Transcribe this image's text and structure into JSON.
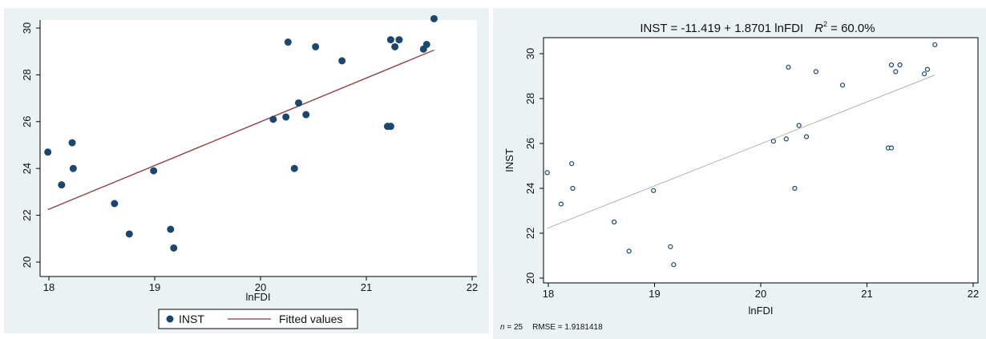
{
  "chart_data": [
    {
      "type": "scatter",
      "title": "",
      "xlabel": "lnFDI",
      "ylabel": "",
      "xlim": [
        18,
        22
      ],
      "ylim": [
        20,
        30.5
      ],
      "xticks": [
        "18",
        "19",
        "20",
        "21",
        "22"
      ],
      "yticks": [
        "20",
        "22",
        "24",
        "26",
        "28",
        "30"
      ],
      "grid": false,
      "legend_position": "bottom",
      "legend": [
        "INST",
        "Fitted values"
      ],
      "colors": {
        "points": "#1a476f",
        "fit": "#90353b",
        "plot_bg": "#eaf2f3",
        "frame_bg": "#ffffff"
      },
      "series": [
        {
          "name": "INST",
          "points": [
            [
              17.99,
              24.7
            ],
            [
              18.12,
              23.3
            ],
            [
              18.22,
              25.1
            ],
            [
              18.23,
              24.0
            ],
            [
              18.62,
              22.5
            ],
            [
              18.76,
              21.2
            ],
            [
              18.99,
              23.9
            ],
            [
              19.15,
              21.4
            ],
            [
              19.18,
              20.6
            ],
            [
              20.12,
              26.1
            ],
            [
              20.24,
              26.2
            ],
            [
              20.26,
              29.4
            ],
            [
              20.32,
              24.0
            ],
            [
              20.36,
              26.8
            ],
            [
              20.43,
              26.3
            ],
            [
              20.52,
              29.2
            ],
            [
              20.77,
              28.6
            ],
            [
              21.2,
              25.8
            ],
            [
              21.23,
              25.8
            ],
            [
              21.23,
              29.5
            ],
            [
              21.27,
              29.2
            ],
            [
              21.31,
              29.5
            ],
            [
              21.54,
              29.1
            ],
            [
              21.57,
              29.3
            ],
            [
              21.64,
              30.4
            ]
          ]
        },
        {
          "name": "Fitted values",
          "type": "line",
          "points": [
            [
              17.99,
              22.24
            ],
            [
              21.64,
              29.06
            ]
          ]
        }
      ]
    },
    {
      "type": "scatter",
      "title": "INST = -11.419 + 1.8701 lnFDI",
      "title_r2_label": "R",
      "title_r2_sup": "2",
      "title_r2_value": " = 60.0%",
      "xlabel": "lnFDI",
      "ylabel": "INST",
      "xlim": [
        18,
        22
      ],
      "ylim": [
        19.7,
        30.8
      ],
      "xticks": [
        "18",
        "19",
        "20",
        "21",
        "22"
      ],
      "yticks": [
        "20",
        "22",
        "24",
        "26",
        "28",
        "30"
      ],
      "grid": false,
      "footnote_n_label": "n",
      "footnote_n_value": " = 25",
      "footnote_rmse": "RMSE = 1.9181418",
      "colors": {
        "points": "#1a476f",
        "fit": "#b0b0b0",
        "plot_bg": "#ffffff",
        "frame_bg": "#eaf2f3"
      },
      "series": [
        {
          "name": "",
          "points": [
            [
              17.99,
              24.7
            ],
            [
              18.12,
              23.3
            ],
            [
              18.22,
              25.1
            ],
            [
              18.23,
              24.0
            ],
            [
              18.62,
              22.5
            ],
            [
              18.76,
              21.2
            ],
            [
              18.99,
              23.9
            ],
            [
              19.15,
              21.4
            ],
            [
              19.18,
              20.6
            ],
            [
              20.12,
              26.1
            ],
            [
              20.24,
              26.2
            ],
            [
              20.26,
              29.4
            ],
            [
              20.32,
              24.0
            ],
            [
              20.36,
              26.8
            ],
            [
              20.43,
              26.3
            ],
            [
              20.52,
              29.2
            ],
            [
              20.77,
              28.6
            ],
            [
              21.2,
              25.8
            ],
            [
              21.23,
              25.8
            ],
            [
              21.23,
              29.5
            ],
            [
              21.27,
              29.2
            ],
            [
              21.31,
              29.5
            ],
            [
              21.54,
              29.1
            ],
            [
              21.57,
              29.3
            ],
            [
              21.64,
              30.4
            ]
          ]
        },
        {
          "name": "",
          "type": "line",
          "points": [
            [
              17.99,
              22.22
            ],
            [
              21.64,
              29.05
            ]
          ]
        }
      ]
    }
  ]
}
